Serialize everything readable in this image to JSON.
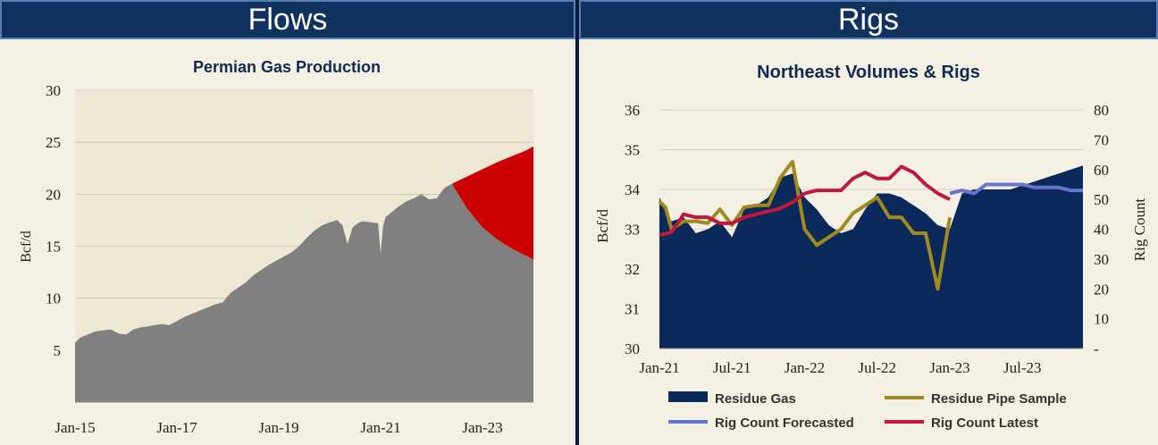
{
  "headers": {
    "left": "Flows",
    "right": "Rigs"
  },
  "chart_data": [
    {
      "type": "area",
      "title": "Permian Gas Production",
      "ylabel": "Bcf/d",
      "xlabel": "",
      "ylim": [
        0,
        30
      ],
      "y_ticks": [
        5,
        10,
        15,
        20,
        25,
        30
      ],
      "x_ticks": [
        {
          "label": "Jan-15",
          "x": 2015.0
        },
        {
          "label": "Jan-17",
          "x": 2017.0
        },
        {
          "label": "Jan-19",
          "x": 2019.0
        },
        {
          "label": "Jan-21",
          "x": 2021.0
        },
        {
          "label": "Jan-23",
          "x": 2023.0
        }
      ],
      "xlim": [
        2015.0,
        2024.0
      ],
      "colors": {
        "history": "#808080",
        "forecast": "#cc0000",
        "plot_bg": "#ede7d3"
      },
      "series": [
        {
          "name": "history",
          "x": [
            2015.0,
            2015.1,
            2015.25,
            2015.4,
            2015.55,
            2015.7,
            2015.85,
            2016.0,
            2016.15,
            2016.3,
            2016.45,
            2016.55,
            2016.7,
            2016.85,
            2017.0,
            2017.15,
            2017.3,
            2017.45,
            2017.6,
            2017.75,
            2017.9,
            2018.05,
            2018.2,
            2018.35,
            2018.5,
            2018.65,
            2018.8,
            2018.95,
            2019.1,
            2019.25,
            2019.4,
            2019.55,
            2019.7,
            2019.85,
            2020.0,
            2020.15,
            2020.25,
            2020.35,
            2020.45,
            2020.55,
            2020.65,
            2020.8,
            2020.95,
            2021.0,
            2021.05,
            2021.1,
            2021.2,
            2021.35,
            2021.5,
            2021.65,
            2021.8,
            2021.95,
            2022.1,
            2022.25,
            2022.4
          ],
          "values": [
            5.7,
            6.2,
            6.5,
            6.8,
            6.9,
            7.0,
            6.6,
            6.5,
            7.0,
            7.2,
            7.3,
            7.4,
            7.5,
            7.4,
            7.8,
            8.2,
            8.5,
            8.8,
            9.1,
            9.4,
            9.6,
            10.5,
            11.0,
            11.5,
            12.2,
            12.7,
            13.2,
            13.6,
            14.0,
            14.4,
            15.0,
            15.8,
            16.5,
            17.0,
            17.3,
            17.5,
            17.0,
            15.2,
            16.8,
            17.2,
            17.4,
            17.3,
            17.2,
            14.3,
            17.0,
            17.8,
            18.2,
            18.8,
            19.3,
            19.6,
            20.0,
            19.5,
            19.6,
            20.6,
            21.0
          ]
        },
        {
          "name": "forecast-upper",
          "x": [
            2022.4,
            2022.7,
            2023.0,
            2023.3,
            2023.6,
            2023.85,
            2024.0
          ],
          "values": [
            21.0,
            21.7,
            22.4,
            23.1,
            23.7,
            24.2,
            24.6
          ]
        },
        {
          "name": "forecast-lower",
          "x": [
            2022.4,
            2022.7,
            2023.0,
            2023.3,
            2023.6,
            2023.85,
            2024.0
          ],
          "values": [
            21.0,
            18.6,
            16.8,
            15.6,
            14.7,
            14.1,
            13.7
          ]
        }
      ]
    },
    {
      "type": "line",
      "title": "Northeast Volumes & Rigs",
      "ylabel": "Bcf/d",
      "y2label": "Rig Count",
      "ylim": [
        30,
        36
      ],
      "y2lim": [
        0,
        80
      ],
      "y_ticks": [
        30,
        31,
        32,
        33,
        34,
        35,
        36
      ],
      "y2_ticks": [
        {
          "label": "-",
          "v": 0
        },
        {
          "label": "10",
          "v": 10
        },
        {
          "label": "20",
          "v": 20
        },
        {
          "label": "30",
          "v": 30
        },
        {
          "label": "40",
          "v": 40
        },
        {
          "label": "50",
          "v": 50
        },
        {
          "label": "60",
          "v": 60
        },
        {
          "label": "70",
          "v": 70
        },
        {
          "label": "80",
          "v": 80
        }
      ],
      "x_ticks": [
        {
          "label": "Jan-21",
          "x": 0
        },
        {
          "label": "Jul-21",
          "x": 6
        },
        {
          "label": "Jan-22",
          "x": 12
        },
        {
          "label": "Jul-22",
          "x": 18
        },
        {
          "label": "Jan-23",
          "x": 24
        },
        {
          "label": "Jul-23",
          "x": 30
        }
      ],
      "xlim": [
        0,
        35
      ],
      "legend_position": "bottom",
      "series": [
        {
          "name": "Residue Gas",
          "axis": "left",
          "color": "#0b2a5b",
          "x": [
            0,
            1,
            2,
            3,
            4,
            5,
            6,
            7,
            8,
            9,
            10,
            11,
            12,
            13,
            14,
            15,
            16,
            17,
            18,
            19,
            20,
            21,
            22,
            23,
            24,
            25,
            26,
            27,
            28,
            29,
            30,
            31,
            32,
            33,
            34,
            35
          ],
          "values": [
            33.8,
            33.2,
            33.3,
            32.9,
            33.0,
            33.2,
            32.8,
            33.5,
            33.6,
            33.8,
            34.3,
            34.4,
            33.8,
            33.5,
            33.1,
            32.9,
            33.0,
            33.5,
            33.9,
            33.9,
            33.8,
            33.6,
            33.4,
            33.1,
            33.0,
            33.9,
            34.0,
            34.0,
            34.0,
            34.0,
            34.1,
            34.2,
            34.3,
            34.4,
            34.5,
            34.6
          ]
        },
        {
          "name": "Residue Pipe Sample",
          "axis": "left",
          "color": "#a08a1e",
          "x": [
            0,
            0.5,
            1,
            2,
            3,
            4,
            5,
            6,
            7,
            8,
            9,
            10,
            11,
            12,
            13,
            14,
            15,
            16,
            17,
            18,
            19,
            20,
            21,
            22,
            23,
            24
          ],
          "values": [
            33.7,
            33.55,
            33.0,
            33.2,
            33.2,
            33.15,
            33.5,
            33.1,
            33.55,
            33.6,
            33.6,
            34.3,
            34.7,
            33.0,
            32.6,
            32.8,
            33.0,
            33.4,
            33.6,
            33.8,
            33.3,
            33.3,
            32.9,
            32.9,
            31.5,
            33.3
          ]
        },
        {
          "name": "Rig Count Forecasted",
          "axis": "right",
          "color": "#6674d0",
          "x": [
            24,
            25,
            26,
            27,
            28,
            29,
            30,
            31,
            32,
            33,
            34,
            35
          ],
          "values": [
            52,
            53,
            52,
            55,
            55,
            55,
            55,
            54,
            54,
            54,
            53,
            53
          ]
        },
        {
          "name": "Rig Count Latest",
          "axis": "right",
          "color": "#c0183a",
          "x": [
            0,
            1,
            2,
            3,
            4,
            5,
            6,
            7,
            8,
            9,
            10,
            11,
            12,
            13,
            14,
            15,
            16,
            17,
            18,
            19,
            20,
            21,
            22,
            23,
            24
          ],
          "values": [
            38,
            39,
            45,
            44,
            44,
            42,
            42,
            44,
            45,
            46,
            47,
            49,
            52,
            53,
            53,
            53,
            57,
            59,
            57,
            57,
            61,
            59,
            55,
            52,
            50
          ]
        }
      ]
    }
  ]
}
